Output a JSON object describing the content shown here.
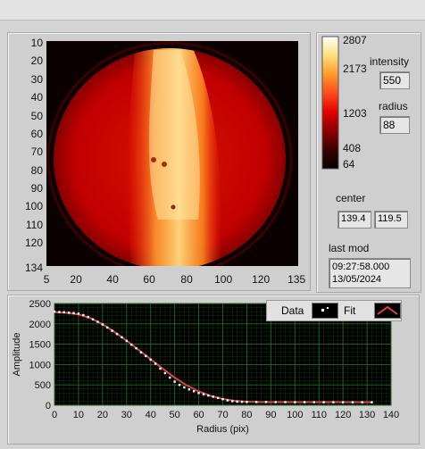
{
  "image_panel": {
    "y_ticks": [
      "10",
      "20",
      "30",
      "40",
      "50",
      "60",
      "70",
      "80",
      "90",
      "100",
      "110",
      "120",
      "134"
    ],
    "x_ticks": [
      "5",
      "20",
      "40",
      "60",
      "80",
      "100",
      "120",
      "135"
    ]
  },
  "colorbar": {
    "ticks": [
      "2807",
      "2173",
      "1203",
      "408",
      "64"
    ],
    "colors": [
      "#000000",
      "#3a0000",
      "#8b0000",
      "#e00000",
      "#ff4a1a",
      "#ff9a2a",
      "#ffe07a",
      "#ffffff"
    ]
  },
  "controls": {
    "intensity_label": "intensity",
    "intensity_value": "550",
    "radius_label": "radius",
    "radius_value": "88",
    "center_label": "center",
    "center_x": "139.4",
    "center_y": "119.5",
    "lastmod_label": "last mod",
    "lastmod_time": "09:27:58.000",
    "lastmod_date": "13/05/2024"
  },
  "legend": {
    "data_label": "Data",
    "fit_label": "Fit"
  },
  "chart_data": {
    "type": "scatter",
    "xlabel": "Radius (pix)",
    "ylabel": "Amplitude",
    "xlim": [
      0,
      140
    ],
    "ylim": [
      0,
      2500
    ],
    "x_ticks": [
      "0",
      "10",
      "20",
      "30",
      "40",
      "50",
      "60",
      "70",
      "80",
      "90",
      "100",
      "110",
      "120",
      "130",
      "140"
    ],
    "y_ticks": [
      "0",
      "500",
      "1000",
      "1500",
      "2000",
      "2500"
    ],
    "grid": true,
    "legend_position": "top-right",
    "colors": {
      "background": "#000000",
      "grid": "#1f7a1f",
      "data": "#ffffff",
      "fit": "#e04040"
    },
    "series": [
      {
        "name": "Data",
        "values": [
          [
            0,
            2300
          ],
          [
            2,
            2290
          ],
          [
            4,
            2285
          ],
          [
            6,
            2275
          ],
          [
            8,
            2265
          ],
          [
            10,
            2250
          ],
          [
            12,
            2215
          ],
          [
            14,
            2170
          ],
          [
            16,
            2110
          ],
          [
            18,
            2050
          ],
          [
            20,
            1985
          ],
          [
            22,
            1910
          ],
          [
            24,
            1830
          ],
          [
            26,
            1750
          ],
          [
            28,
            1670
          ],
          [
            30,
            1580
          ],
          [
            32,
            1490
          ],
          [
            34,
            1400
          ],
          [
            36,
            1300
          ],
          [
            38,
            1210
          ],
          [
            40,
            1120
          ],
          [
            42,
            1020
          ],
          [
            44,
            900
          ],
          [
            46,
            790
          ],
          [
            48,
            680
          ],
          [
            50,
            580
          ],
          [
            52,
            500
          ],
          [
            54,
            440
          ],
          [
            56,
            390
          ],
          [
            58,
            345
          ],
          [
            60,
            300
          ],
          [
            62,
            270
          ],
          [
            64,
            240
          ],
          [
            66,
            210
          ],
          [
            68,
            180
          ],
          [
            70,
            150
          ],
          [
            72,
            120
          ],
          [
            74,
            100
          ],
          [
            76,
            90
          ],
          [
            78,
            85
          ],
          [
            80,
            82
          ],
          [
            84,
            80
          ],
          [
            88,
            80
          ],
          [
            92,
            78
          ],
          [
            96,
            78
          ],
          [
            100,
            76
          ],
          [
            104,
            76
          ],
          [
            108,
            76
          ],
          [
            112,
            75
          ],
          [
            116,
            75
          ],
          [
            120,
            75
          ],
          [
            124,
            74
          ],
          [
            128,
            74
          ],
          [
            132,
            74
          ]
        ]
      },
      {
        "name": "Fit",
        "values": [
          [
            0,
            2290
          ],
          [
            5,
            2270
          ],
          [
            10,
            2230
          ],
          [
            15,
            2140
          ],
          [
            20,
            1990
          ],
          [
            25,
            1800
          ],
          [
            30,
            1590
          ],
          [
            35,
            1360
          ],
          [
            40,
            1130
          ],
          [
            45,
            900
          ],
          [
            50,
            680
          ],
          [
            55,
            490
          ],
          [
            60,
            340
          ],
          [
            65,
            230
          ],
          [
            70,
            155
          ],
          [
            75,
            110
          ],
          [
            80,
            88
          ],
          [
            85,
            80
          ],
          [
            90,
            78
          ],
          [
            132,
            75
          ]
        ]
      }
    ]
  }
}
